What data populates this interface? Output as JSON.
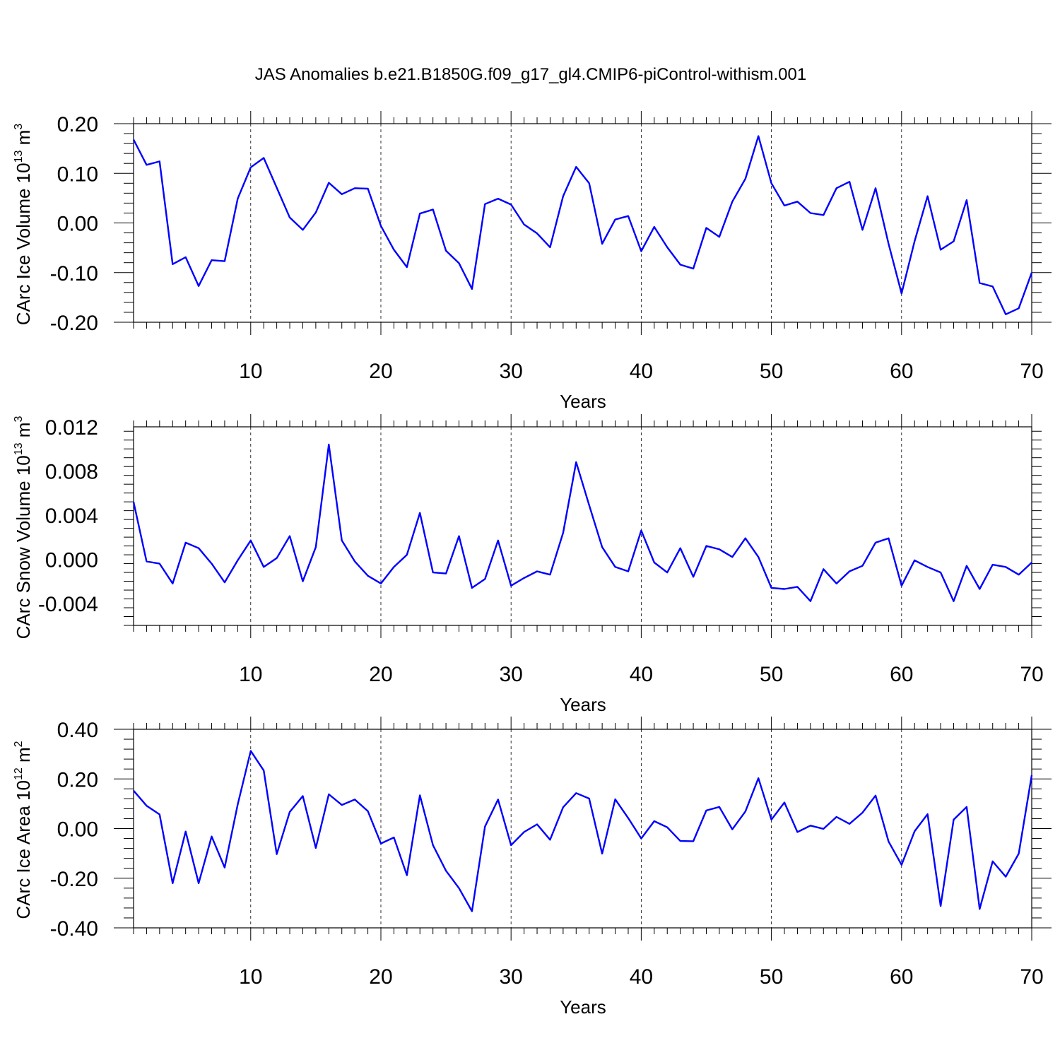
{
  "title": "JAS Anomalies b.e21.B1850G.f09_g17_gl4.CMIP6-piControl-withism.001",
  "line_color": "#0000ff",
  "chart_data": [
    {
      "type": "line",
      "title": "JAS Anomalies b.e21.B1850G.f09_g17_gl4.CMIP6-piControl-withism.001",
      "xlabel": "Years",
      "ylabel": {
        "text": "CArc Ice Volume 10",
        "exp": "13",
        "unit": " m",
        "unit_exp": "3"
      },
      "xlim": [
        1,
        70
      ],
      "ylim": [
        -0.2,
        0.2
      ],
      "xticks": [
        10,
        20,
        30,
        40,
        50,
        60,
        70
      ],
      "yticks": [
        -0.2,
        -0.1,
        0.0,
        0.1,
        0.2
      ],
      "ytick_labels": [
        "-0.20",
        "-0.10",
        "0.00",
        "0.10",
        "0.20"
      ],
      "grid": "vertical dashed",
      "x": [
        1,
        2,
        3,
        4,
        5,
        6,
        7,
        8,
        9,
        10,
        11,
        12,
        13,
        14,
        15,
        16,
        17,
        18,
        19,
        20,
        21,
        22,
        23,
        24,
        25,
        26,
        27,
        28,
        29,
        30,
        31,
        32,
        33,
        34,
        35,
        36,
        37,
        38,
        39,
        40,
        41,
        42,
        43,
        44,
        45,
        46,
        47,
        48,
        49,
        50,
        51,
        52,
        53,
        54,
        55,
        56,
        57,
        58,
        59,
        60,
        61,
        62,
        63,
        64,
        65,
        66,
        67,
        68,
        69,
        70
      ],
      "values": [
        0.168,
        0.117,
        0.124,
        -0.083,
        -0.069,
        -0.127,
        -0.075,
        -0.077,
        0.049,
        0.112,
        0.131,
        0.071,
        0.011,
        -0.014,
        0.021,
        0.081,
        0.058,
        0.07,
        0.069,
        -0.006,
        -0.054,
        -0.089,
        0.019,
        0.027,
        -0.056,
        -0.081,
        -0.133,
        0.038,
        0.049,
        0.037,
        -0.003,
        -0.021,
        -0.049,
        0.054,
        0.113,
        0.08,
        -0.042,
        0.007,
        0.014,
        -0.057,
        -0.008,
        -0.049,
        -0.084,
        -0.092,
        -0.01,
        -0.028,
        0.043,
        0.089,
        0.175,
        0.08,
        0.035,
        0.043,
        0.02,
        0.016,
        0.07,
        0.083,
        -0.014,
        0.07,
        -0.042,
        -0.142,
        -0.037,
        0.054,
        -0.054,
        -0.037,
        0.046,
        -0.121,
        -0.128,
        -0.184,
        -0.172,
        -0.1
      ]
    },
    {
      "type": "line",
      "title": "",
      "xlabel": "Years",
      "ylabel": {
        "text": "CArc Snow Volume 10",
        "exp": "13",
        "unit": " m",
        "unit_exp": "3"
      },
      "xlim": [
        1,
        70
      ],
      "ylim": [
        -0.006,
        0.012
      ],
      "xticks": [
        10,
        20,
        30,
        40,
        50,
        60,
        70
      ],
      "yticks": [
        -0.004,
        0.0,
        0.004,
        0.008,
        0.012
      ],
      "ytick_labels": [
        "-0.004",
        "0.000",
        "0.004",
        "0.008",
        "0.012"
      ],
      "grid": "vertical dashed",
      "x": [
        1,
        2,
        3,
        4,
        5,
        6,
        7,
        8,
        9,
        10,
        11,
        12,
        13,
        14,
        15,
        16,
        17,
        18,
        19,
        20,
        21,
        22,
        23,
        24,
        25,
        26,
        27,
        28,
        29,
        30,
        31,
        32,
        33,
        34,
        35,
        36,
        37,
        38,
        39,
        40,
        41,
        42,
        43,
        44,
        45,
        46,
        47,
        48,
        49,
        50,
        51,
        52,
        53,
        54,
        55,
        56,
        57,
        58,
        59,
        60,
        61,
        62,
        63,
        64,
        65,
        66,
        67,
        68,
        69,
        70
      ],
      "values": [
        0.0052,
        -0.0002,
        -0.0004,
        -0.0022,
        0.0015,
        0.001,
        -0.0004,
        -0.0021,
        -0.0001,
        0.0017,
        -0.0007,
        0.0001,
        0.0021,
        -0.002,
        0.0011,
        0.0104,
        0.0017,
        -0.0002,
        -0.0015,
        -0.0022,
        -0.0007,
        0.0004,
        0.0042,
        -0.0012,
        -0.0013,
        0.0021,
        -0.0026,
        -0.0018,
        0.0017,
        -0.0024,
        -0.0017,
        -0.0011,
        -0.0014,
        0.0024,
        0.0088,
        0.0049,
        0.0011,
        -0.0007,
        -0.0011,
        0.0026,
        -0.0003,
        -0.0012,
        0.001,
        -0.0016,
        0.0012,
        0.0009,
        0.0002,
        0.0019,
        0.0002,
        -0.0026,
        -0.0027,
        -0.0025,
        -0.0038,
        -0.0009,
        -0.0022,
        -0.0011,
        -0.0006,
        0.0015,
        0.0019,
        -0.0024,
        -0.0001,
        -0.0007,
        -0.0012,
        -0.0038,
        -0.0006,
        -0.0027,
        -0.0005,
        -0.0007,
        -0.0014,
        -0.0003
      ]
    },
    {
      "type": "line",
      "title": "",
      "xlabel": "Years",
      "ylabel": {
        "text": "CArc Ice Area 10",
        "exp": "12",
        "unit": " m",
        "unit_exp": "2"
      },
      "xlim": [
        1,
        70
      ],
      "ylim": [
        -0.4,
        0.4
      ],
      "xticks": [
        10,
        20,
        30,
        40,
        50,
        60,
        70
      ],
      "yticks": [
        -0.4,
        -0.2,
        0.0,
        0.2,
        0.4
      ],
      "ytick_labels": [
        "-0.40",
        "-0.20",
        "0.00",
        "0.20",
        "0.40"
      ],
      "grid": "vertical dashed",
      "x": [
        1,
        2,
        3,
        4,
        5,
        6,
        7,
        8,
        9,
        10,
        11,
        12,
        13,
        14,
        15,
        16,
        17,
        18,
        19,
        20,
        21,
        22,
        23,
        24,
        25,
        26,
        27,
        28,
        29,
        30,
        31,
        32,
        33,
        34,
        35,
        36,
        37,
        38,
        39,
        40,
        41,
        42,
        43,
        44,
        45,
        46,
        47,
        48,
        49,
        50,
        51,
        52,
        53,
        54,
        55,
        56,
        57,
        58,
        59,
        60,
        61,
        62,
        63,
        64,
        65,
        66,
        67,
        68,
        69,
        70
      ],
      "values": [
        0.153,
        0.092,
        0.057,
        -0.22,
        -0.012,
        -0.22,
        -0.032,
        -0.157,
        0.097,
        0.313,
        0.234,
        -0.103,
        0.067,
        0.131,
        -0.078,
        0.138,
        0.095,
        0.117,
        0.07,
        -0.06,
        -0.036,
        -0.188,
        0.134,
        -0.067,
        -0.17,
        -0.24,
        -0.333,
        0.008,
        0.117,
        -0.067,
        -0.014,
        0.017,
        -0.045,
        0.086,
        0.143,
        0.121,
        -0.101,
        0.118,
        0.042,
        -0.04,
        0.03,
        0.005,
        -0.05,
        -0.051,
        0.073,
        0.087,
        -0.003,
        0.069,
        0.203,
        0.036,
        0.105,
        -0.014,
        0.012,
        -0.001,
        0.047,
        0.019,
        0.064,
        0.133,
        -0.052,
        -0.146,
        -0.011,
        0.058,
        -0.312,
        0.036,
        0.087,
        -0.324,
        -0.132,
        -0.194,
        -0.101,
        0.215
      ]
    }
  ]
}
